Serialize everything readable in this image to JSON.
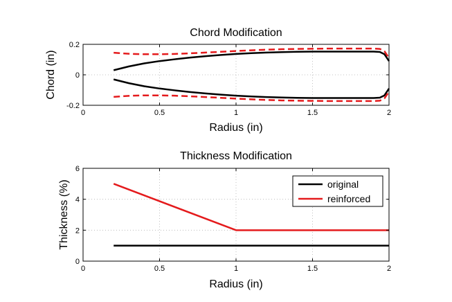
{
  "chart_data": [
    {
      "type": "line",
      "title": "Chord Modification",
      "xlabel": "Radius (in)",
      "ylabel": "Chord (in)",
      "xlim": [
        0,
        2
      ],
      "ylim": [
        -0.2,
        0.2
      ],
      "xticks": [
        0,
        0.5,
        1,
        1.5,
        2
      ],
      "xtick_labels": [
        "0",
        "0.5",
        "1",
        "1.5",
        "2"
      ],
      "yticks": [
        -0.2,
        0,
        0.2
      ],
      "ytick_labels": [
        "-0.2",
        "0",
        "0.2"
      ],
      "grid": true,
      "series": [
        {
          "color": "#000000",
          "style": "solid",
          "x": [
            0.2,
            0.3,
            0.4,
            0.5,
            0.6,
            0.7,
            0.8,
            0.9,
            1.0,
            1.1,
            1.2,
            1.3,
            1.4,
            1.5,
            1.6,
            1.7,
            1.8,
            1.9,
            1.94,
            1.97,
            2.0
          ],
          "values": [
            0.03,
            0.055,
            0.075,
            0.09,
            0.102,
            0.113,
            0.122,
            0.13,
            0.137,
            0.142,
            0.146,
            0.149,
            0.151,
            0.152,
            0.152,
            0.152,
            0.152,
            0.152,
            0.15,
            0.135,
            0.09
          ]
        },
        {
          "color": "#000000",
          "style": "solid",
          "x": [
            0.2,
            0.3,
            0.4,
            0.5,
            0.6,
            0.7,
            0.8,
            0.9,
            1.0,
            1.1,
            1.2,
            1.3,
            1.4,
            1.5,
            1.6,
            1.7,
            1.8,
            1.9,
            1.94,
            1.97,
            2.0
          ],
          "values": [
            -0.03,
            -0.055,
            -0.075,
            -0.09,
            -0.102,
            -0.113,
            -0.122,
            -0.13,
            -0.137,
            -0.142,
            -0.146,
            -0.149,
            -0.151,
            -0.152,
            -0.152,
            -0.152,
            -0.152,
            -0.152,
            -0.15,
            -0.135,
            -0.09
          ]
        },
        {
          "color": "#e41a1c",
          "style": "dashed",
          "x": [
            0.2,
            0.3,
            0.4,
            0.5,
            0.6,
            0.7,
            0.8,
            0.9,
            1.0,
            1.1,
            1.2,
            1.3,
            1.4,
            1.5,
            1.6,
            1.7,
            1.8,
            1.9,
            1.94,
            1.97,
            2.0
          ],
          "values": [
            0.145,
            0.138,
            0.135,
            0.135,
            0.137,
            0.141,
            0.146,
            0.151,
            0.156,
            0.161,
            0.165,
            0.168,
            0.17,
            0.171,
            0.172,
            0.172,
            0.172,
            0.172,
            0.17,
            0.155,
            0.11
          ]
        },
        {
          "color": "#e41a1c",
          "style": "dashed",
          "x": [
            0.2,
            0.3,
            0.4,
            0.5,
            0.6,
            0.7,
            0.8,
            0.9,
            1.0,
            1.1,
            1.2,
            1.3,
            1.4,
            1.5,
            1.6,
            1.7,
            1.8,
            1.9,
            1.94,
            1.97,
            2.0
          ],
          "values": [
            -0.145,
            -0.138,
            -0.135,
            -0.135,
            -0.137,
            -0.141,
            -0.146,
            -0.151,
            -0.156,
            -0.161,
            -0.165,
            -0.168,
            -0.17,
            -0.171,
            -0.172,
            -0.172,
            -0.172,
            -0.172,
            -0.17,
            -0.155,
            -0.11
          ]
        }
      ]
    },
    {
      "type": "line",
      "title": "Thickness Modification",
      "xlabel": "Radius (in)",
      "ylabel": "Thickness (%)",
      "xlim": [
        0,
        2
      ],
      "ylim": [
        0,
        6
      ],
      "xticks": [
        0,
        0.5,
        1,
        1.5,
        2
      ],
      "xtick_labels": [
        "0",
        "0.5",
        "1",
        "1.5",
        "2"
      ],
      "yticks": [
        0,
        2,
        4,
        6
      ],
      "ytick_labels": [
        "0",
        "2",
        "4",
        "6"
      ],
      "grid": true,
      "legend": "top-right",
      "series": [
        {
          "name": "original",
          "color": "#000000",
          "style": "solid",
          "x": [
            0.2,
            2.0
          ],
          "values": [
            1,
            1
          ]
        },
        {
          "name": "reinforced",
          "color": "#e41a1c",
          "style": "solid",
          "x": [
            0.2,
            1.0,
            2.0
          ],
          "values": [
            5,
            2,
            2
          ]
        }
      ]
    }
  ]
}
